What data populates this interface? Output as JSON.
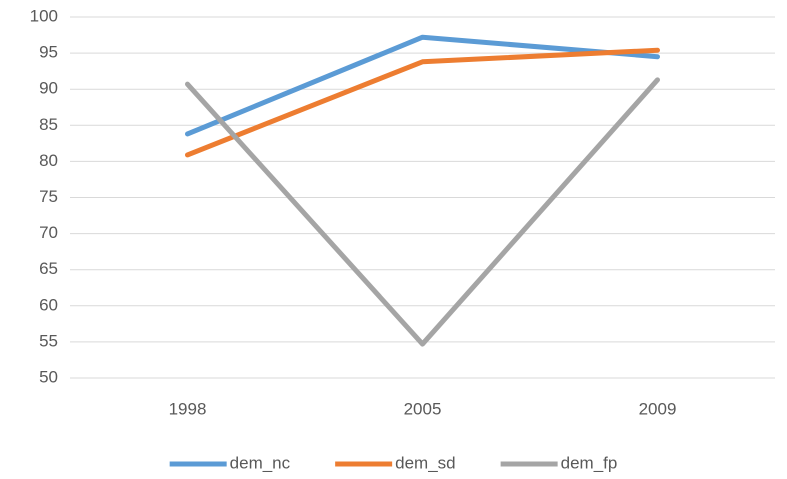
{
  "chart_data": {
    "type": "line",
    "categories": [
      "1998",
      "2005",
      "2009"
    ],
    "series": [
      {
        "name": "dem_nc",
        "color": "#5b9bd5",
        "values": [
          83.8,
          97.2,
          94.5
        ]
      },
      {
        "name": "dem_sd",
        "color": "#ed7d31",
        "values": [
          80.9,
          93.8,
          95.4
        ]
      },
      {
        "name": "dem_fp",
        "color": "#a5a5a5",
        "values": [
          90.7,
          54.7,
          91.3
        ]
      }
    ],
    "ylim": [
      50,
      100
    ],
    "yticks": [
      50,
      55,
      60,
      65,
      70,
      75,
      80,
      85,
      90,
      95,
      100
    ],
    "grid": true,
    "legend": "bottom"
  }
}
